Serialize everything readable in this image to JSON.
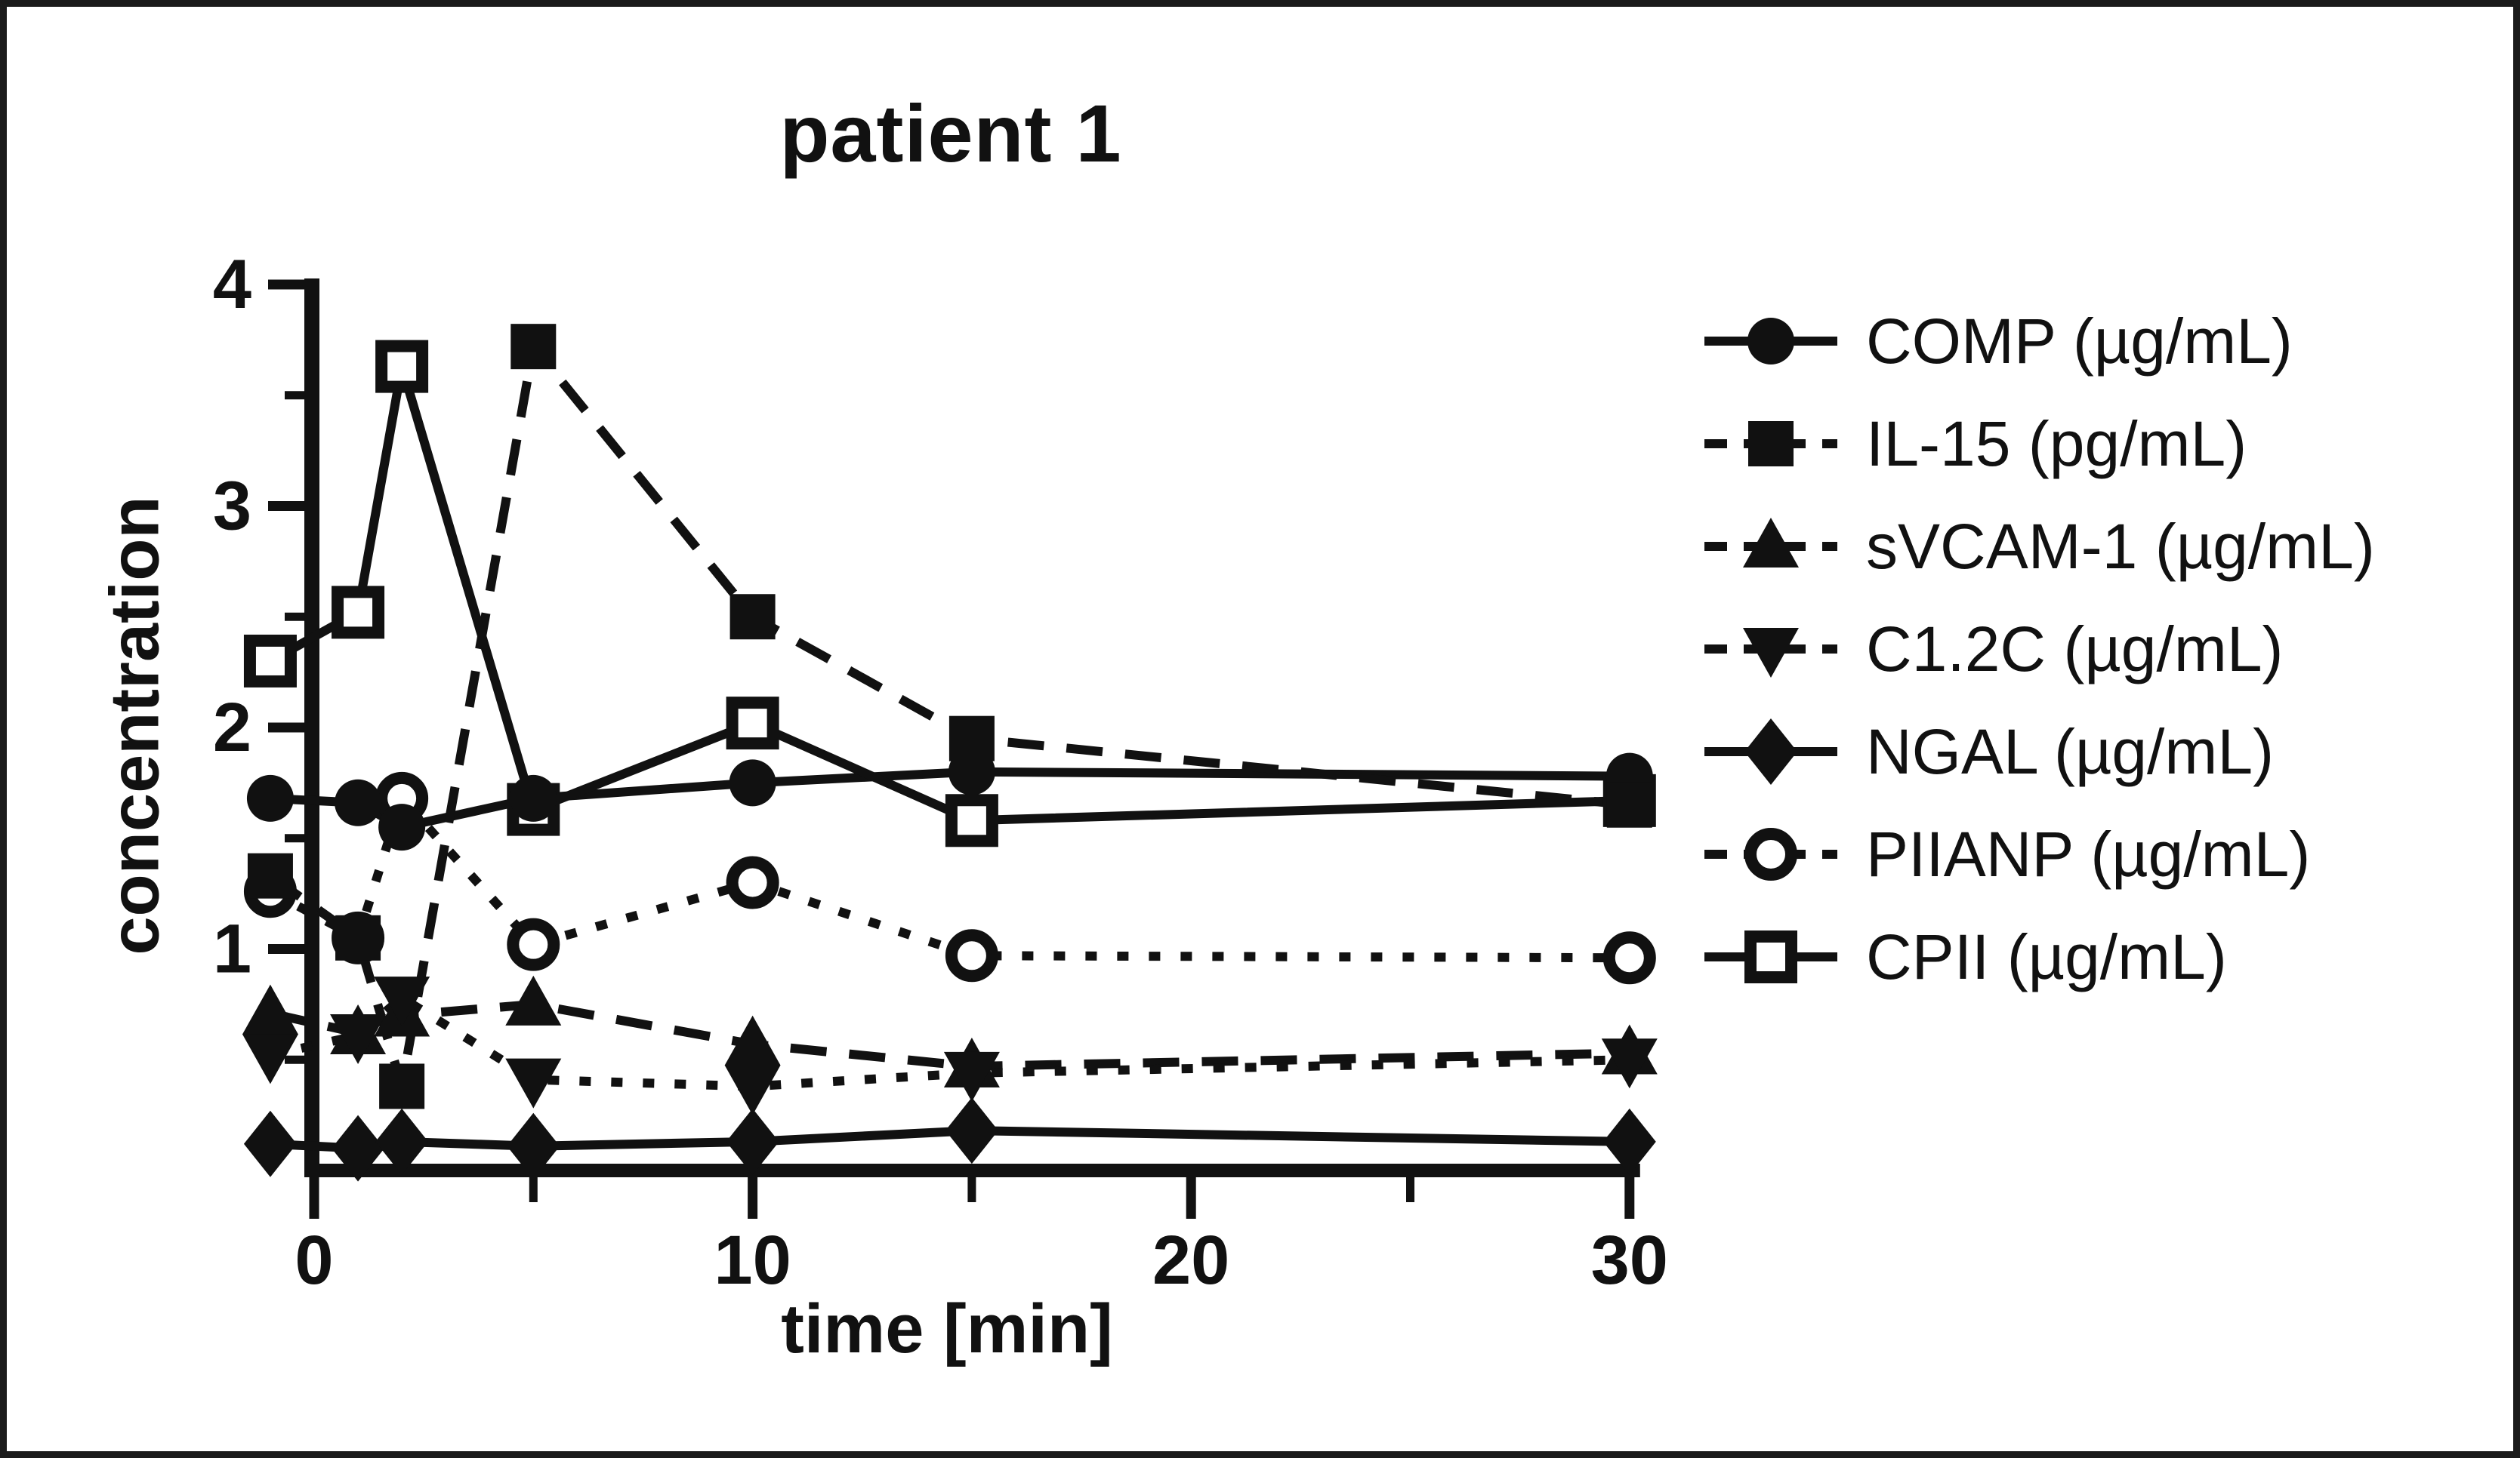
{
  "figure": {
    "title": "patient 1",
    "xlabel": "time [min]",
    "ylabel": "concentration"
  },
  "chart_data": {
    "type": "line",
    "title": "patient 1",
    "xlabel": "time [min]",
    "ylabel": "concentration",
    "x": [
      -1,
      1,
      2,
      5,
      10,
      15,
      30
    ],
    "xlim": [
      -2,
      31.5
    ],
    "ylim": [
      0,
      4
    ],
    "x_major_ticks": [
      0,
      10,
      20,
      30
    ],
    "x_minor_ticks": [
      5,
      15,
      25
    ],
    "y_major_ticks": [
      1,
      2,
      3,
      4
    ],
    "y_minor_ticks": [
      0.5,
      1.5,
      2.5,
      3.5
    ],
    "grid": false,
    "legend_position": "right",
    "ink_color": "#111111",
    "background_color": "#ffffff",
    "series": [
      {
        "name": "COMP (µg/mL)",
        "marker": "circle",
        "fill": "filled",
        "line": "solid",
        "values": [
          1.68,
          1.66,
          1.55,
          1.68,
          1.75,
          1.8,
          1.78
        ]
      },
      {
        "name": "IL-15 (pg/mL)",
        "marker": "square",
        "fill": "filled",
        "line": "dashed",
        "values": [
          1.33,
          1.05,
          0.38,
          3.72,
          2.5,
          1.95,
          1.65
        ]
      },
      {
        "name": "sVCAM-1 (µg/mL)",
        "marker": "triangle-up",
        "fill": "filled",
        "line": "dashed",
        "values": [
          0.71,
          0.62,
          0.7,
          0.75,
          0.57,
          0.47,
          0.53
        ]
      },
      {
        "name": "C1.2C (µg/mL)",
        "marker": "triangle-down",
        "fill": "filled",
        "line": "dotted",
        "values": [
          0.52,
          0.61,
          0.78,
          0.41,
          0.38,
          0.44,
          0.5
        ]
      },
      {
        "name": "NGAL (µg/mL)",
        "marker": "diamond",
        "fill": "filled",
        "line": "solid",
        "values": [
          0.12,
          0.1,
          0.13,
          0.11,
          0.13,
          0.18,
          0.13
        ]
      },
      {
        "name": "PIIANP (µg/mL)",
        "marker": "circle",
        "fill": "open",
        "line": "dotted",
        "values": [
          1.26,
          1.05,
          1.68,
          1.02,
          1.3,
          0.97,
          0.96
        ]
      },
      {
        "name": "CPII (µg/mL)",
        "marker": "square",
        "fill": "open",
        "line": "solid",
        "values": [
          2.3,
          2.52,
          3.63,
          1.63,
          2.02,
          1.58,
          1.67
        ]
      }
    ]
  }
}
